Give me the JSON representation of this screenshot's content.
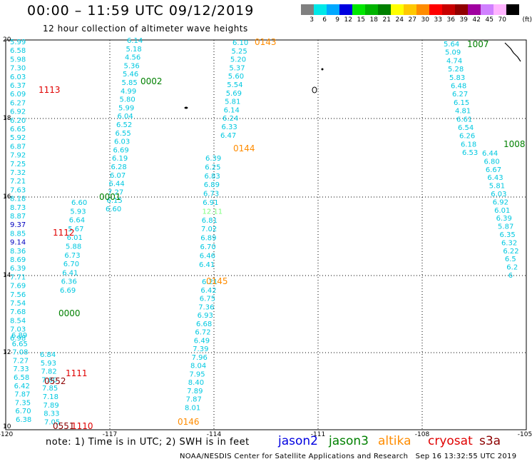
{
  "title": "00:00 – 11:59 UTC 09/12/2019",
  "subtitle": "12 hour collection of altimeter wave heights",
  "legend": {
    "unit": "(ft)",
    "bins": [
      {
        "label": "3",
        "color": "#808080"
      },
      {
        "label": "6",
        "color": "#00e8e8"
      },
      {
        "label": "9",
        "color": "#00a8ff"
      },
      {
        "label": "12",
        "color": "#0000e0"
      },
      {
        "label": "15",
        "color": "#00e800"
      },
      {
        "label": "18",
        "color": "#00b400"
      },
      {
        "label": "21",
        "color": "#008000"
      },
      {
        "label": "24",
        "color": "#ffff00"
      },
      {
        "label": "27",
        "color": "#ffc800"
      },
      {
        "label": "30",
        "color": "#ff8c00"
      },
      {
        "label": "33",
        "color": "#ff0000"
      },
      {
        "label": "36",
        "color": "#c80000"
      },
      {
        "label": "39",
        "color": "#900000"
      },
      {
        "label": "42",
        "color": "#a000a0"
      },
      {
        "label": "45",
        "color": "#d080ff"
      },
      {
        "label": "70",
        "color": "#ffb4ff"
      },
      {
        "label": "",
        "color": "#000000"
      }
    ]
  },
  "axes": {
    "lon_ticks": [
      "-120",
      "-117",
      "-114",
      "-111",
      "-108",
      "-105"
    ],
    "lat_ticks": [
      "20",
      "18",
      "16",
      "14",
      "12",
      "10"
    ]
  },
  "colors": {
    "light": "#00c8e0",
    "dark_blue": "#0000c0",
    "green": "#008000",
    "orange": "#ff8c00",
    "red": "#e00000",
    "darkred": "#8c0000",
    "lime": "#7cff7c"
  },
  "tracks": [
    {
      "time": "1113",
      "time_color": "red",
      "values": [
        {
          "v": "5.99",
          "c": "light"
        },
        {
          "v": "6.58",
          "c": "light"
        },
        {
          "v": "5.98",
          "c": "light"
        },
        {
          "v": "7.30",
          "c": "light"
        },
        {
          "v": "6.03",
          "c": "light"
        },
        {
          "v": "6.37",
          "c": "light"
        },
        {
          "v": "6.09",
          "c": "light"
        },
        {
          "v": "6.27",
          "c": "light"
        },
        {
          "v": "6.92",
          "c": "light"
        },
        {
          "v": "6.20",
          "c": "light"
        },
        {
          "v": "6.65",
          "c": "light"
        },
        {
          "v": "5.92",
          "c": "light"
        },
        {
          "v": "6.87",
          "c": "light"
        },
        {
          "v": "7.92",
          "c": "light"
        },
        {
          "v": "7.25",
          "c": "light"
        },
        {
          "v": "7.32",
          "c": "light"
        },
        {
          "v": "7.21",
          "c": "light"
        },
        {
          "v": "7.63",
          "c": "light"
        },
        {
          "v": "8.18",
          "c": "light"
        },
        {
          "v": "8.73",
          "c": "light"
        },
        {
          "v": "8.87",
          "c": "light"
        },
        {
          "v": "9.37",
          "c": "dark_blue"
        },
        {
          "v": "8.85",
          "c": "light"
        },
        {
          "v": "9.14",
          "c": "dark_blue"
        },
        {
          "v": "8.36",
          "c": "light"
        },
        {
          "v": "8.69",
          "c": "light"
        },
        {
          "v": "6.39",
          "c": "light"
        },
        {
          "v": "7.71",
          "c": "light"
        },
        {
          "v": "7.69",
          "c": "light"
        },
        {
          "v": "7.56",
          "c": "light"
        },
        {
          "v": "7.54",
          "c": "light"
        },
        {
          "v": "7.68",
          "c": "light"
        },
        {
          "v": "8.54",
          "c": "light"
        },
        {
          "v": "7.03",
          "c": "light"
        },
        {
          "v": "6.98",
          "c": "light"
        }
      ]
    },
    {
      "time": "0002",
      "time_color": "green",
      "values": [
        {
          "v": "6.14",
          "c": "light"
        },
        {
          "v": "5.18",
          "c": "light"
        },
        {
          "v": "4.56",
          "c": "light"
        },
        {
          "v": "5.36",
          "c": "light"
        },
        {
          "v": "5.46",
          "c": "light"
        },
        {
          "v": "5.85",
          "c": "light"
        },
        {
          "v": "4.99",
          "c": "light"
        },
        {
          "v": "5.80",
          "c": "light"
        },
        {
          "v": "5.99",
          "c": "light"
        },
        {
          "v": "6.04",
          "c": "light"
        },
        {
          "v": "6.52",
          "c": "light"
        },
        {
          "v": "6.55",
          "c": "light"
        },
        {
          "v": "6.03",
          "c": "light"
        },
        {
          "v": "6.69",
          "c": "light"
        },
        {
          "v": "6.19",
          "c": "light"
        },
        {
          "v": "6.28",
          "c": "light"
        },
        {
          "v": "6.07",
          "c": "light"
        },
        {
          "v": "6.44",
          "c": "light"
        },
        {
          "v": "7.27",
          "c": "light"
        },
        {
          "v": "6.15",
          "c": "light"
        },
        {
          "v": "6.60",
          "c": "light"
        }
      ]
    },
    {
      "time": "0001",
      "time_color": "green",
      "values": [
        {
          "v": "6.60",
          "c": "light"
        },
        {
          "v": "5.93",
          "c": "light"
        },
        {
          "v": "6.64",
          "c": "light"
        },
        {
          "v": "5.67",
          "c": "light"
        },
        {
          "v": "6.01",
          "c": "light"
        },
        {
          "v": "5.88",
          "c": "light"
        },
        {
          "v": "6.73",
          "c": "light"
        },
        {
          "v": "6.70",
          "c": "light"
        },
        {
          "v": "6.41",
          "c": "light"
        },
        {
          "v": "6.36",
          "c": "light"
        },
        {
          "v": "6.69",
          "c": "light"
        }
      ]
    },
    {
      "time": "1112",
      "time_color": "red",
      "values": []
    },
    {
      "time": "0000",
      "time_color": "green",
      "values": []
    },
    {
      "time": "1111",
      "time_color": "red",
      "values": [
        {
          "v": "6.89",
          "c": "light"
        },
        {
          "v": "6.65",
          "c": "light"
        },
        {
          "v": "7.08",
          "c": "light"
        },
        {
          "v": "7.27",
          "c": "light"
        },
        {
          "v": "7.33",
          "c": "light"
        },
        {
          "v": "6.58",
          "c": "light"
        },
        {
          "v": "6.42",
          "c": "light"
        },
        {
          "v": "7.87",
          "c": "light"
        },
        {
          "v": "7.35",
          "c": "light"
        },
        {
          "v": "6.70",
          "c": "light"
        },
        {
          "v": "6.38",
          "c": "light"
        }
      ]
    },
    {
      "time": "0552",
      "time_color": "darkred",
      "values": [
        {
          "v": "6.84",
          "c": "light"
        },
        {
          "v": "5.93",
          "c": "light"
        },
        {
          "v": "7.82",
          "c": "light"
        },
        {
          "v": "7.80",
          "c": "light"
        },
        {
          "v": "7.85",
          "c": "light"
        },
        {
          "v": "7.18",
          "c": "light"
        },
        {
          "v": "7.89",
          "c": "light"
        },
        {
          "v": "8.33",
          "c": "light"
        },
        {
          "v": "7.05",
          "c": "light"
        }
      ]
    },
    {
      "time": "1110",
      "time_color": "red",
      "values": []
    },
    {
      "time": "0551",
      "time_color": "darkred",
      "values": []
    },
    {
      "time": "0143",
      "time_color": "orange",
      "values": [
        {
          "v": "6.10",
          "c": "light"
        },
        {
          "v": "5.25",
          "c": "light"
        },
        {
          "v": "5.20",
          "c": "light"
        },
        {
          "v": "5.37",
          "c": "light"
        },
        {
          "v": "5.60",
          "c": "light"
        },
        {
          "v": "5.54",
          "c": "light"
        },
        {
          "v": "5.69",
          "c": "light"
        },
        {
          "v": "5.81",
          "c": "light"
        },
        {
          "v": "6.14",
          "c": "light"
        },
        {
          "v": "6.24",
          "c": "light"
        },
        {
          "v": "6.33",
          "c": "light"
        },
        {
          "v": "6.47",
          "c": "light"
        }
      ]
    },
    {
      "time": "0144",
      "time_color": "orange",
      "values": [
        {
          "v": "6.39",
          "c": "light"
        },
        {
          "v": "6.25",
          "c": "light"
        },
        {
          "v": "6.83",
          "c": "light"
        },
        {
          "v": "6.89",
          "c": "light"
        },
        {
          "v": "6.73",
          "c": "light"
        },
        {
          "v": "6.91",
          "c": "light"
        },
        {
          "v": "12.11",
          "c": "lime"
        },
        {
          "v": "6.81",
          "c": "light"
        },
        {
          "v": "7.02",
          "c": "light"
        },
        {
          "v": "6.89",
          "c": "light"
        },
        {
          "v": "6.70",
          "c": "light"
        },
        {
          "v": "6.46",
          "c": "light"
        },
        {
          "v": "6.41",
          "c": "light"
        }
      ]
    },
    {
      "time": "0145",
      "time_color": "orange",
      "values": [
        {
          "v": "6.21",
          "c": "light"
        },
        {
          "v": "6.42",
          "c": "light"
        },
        {
          "v": "6.75",
          "c": "light"
        },
        {
          "v": "7.36",
          "c": "light"
        },
        {
          "v": "6.93",
          "c": "light"
        },
        {
          "v": "6.68",
          "c": "light"
        },
        {
          "v": "6.72",
          "c": "light"
        },
        {
          "v": "6.49",
          "c": "light"
        },
        {
          "v": "7.39",
          "c": "light"
        },
        {
          "v": "7.96",
          "c": "light"
        },
        {
          "v": "8.04",
          "c": "light"
        },
        {
          "v": "7.95",
          "c": "light"
        },
        {
          "v": "8.40",
          "c": "light"
        },
        {
          "v": "7.89",
          "c": "light"
        },
        {
          "v": "7.87",
          "c": "light"
        },
        {
          "v": "8.01",
          "c": "light"
        }
      ]
    },
    {
      "time": "0146",
      "time_color": "orange",
      "values": []
    },
    {
      "time": "1007",
      "time_color": "green",
      "values": [
        {
          "v": "5.64",
          "c": "light"
        },
        {
          "v": "5.09",
          "c": "light"
        },
        {
          "v": "4.74",
          "c": "light"
        },
        {
          "v": "5.28",
          "c": "light"
        },
        {
          "v": "5.83",
          "c": "light"
        },
        {
          "v": "6.48",
          "c": "light"
        },
        {
          "v": "6.27",
          "c": "light"
        },
        {
          "v": "6.15",
          "c": "light"
        },
        {
          "v": "4.81",
          "c": "light"
        },
        {
          "v": "6.61",
          "c": "light"
        },
        {
          "v": "6.54",
          "c": "light"
        },
        {
          "v": "6.26",
          "c": "light"
        },
        {
          "v": "6.18",
          "c": "light"
        },
        {
          "v": "6.53",
          "c": "light"
        }
      ]
    },
    {
      "time": "1008",
      "time_color": "green",
      "values": [
        {
          "v": "6.44",
          "c": "light"
        },
        {
          "v": "6.80",
          "c": "light"
        },
        {
          "v": "6.67",
          "c": "light"
        },
        {
          "v": "6.43",
          "c": "light"
        },
        {
          "v": "5.81",
          "c": "light"
        },
        {
          "v": "6.03",
          "c": "light"
        },
        {
          "v": "6.92",
          "c": "light"
        },
        {
          "v": "6.01",
          "c": "light"
        },
        {
          "v": "6.39",
          "c": "light"
        },
        {
          "v": "5.87",
          "c": "light"
        },
        {
          "v": "6.35",
          "c": "light"
        },
        {
          "v": "6.32",
          "c": "light"
        },
        {
          "v": "6.22",
          "c": "light"
        },
        {
          "v": "6.5",
          "c": "light"
        },
        {
          "v": "6.2",
          "c": "light"
        },
        {
          "v": "6",
          "c": "light"
        }
      ]
    }
  ],
  "note": "note: 1) Time is in UTC; 2) SWH is in feet",
  "satellites": [
    {
      "name": "jason2",
      "color": "#0000e0"
    },
    {
      "name": "jason3",
      "color": "#008000"
    },
    {
      "name": "altika",
      "color": "#ff8c00"
    },
    {
      "name": "cryosat",
      "color": "#e00000"
    },
    {
      "name": "s3a",
      "color": "#8c0000"
    }
  ],
  "footer": "NOAA/NESDIS Center for Satellite Applications and Research   Sep 16 13:32:55 UTC 2019"
}
